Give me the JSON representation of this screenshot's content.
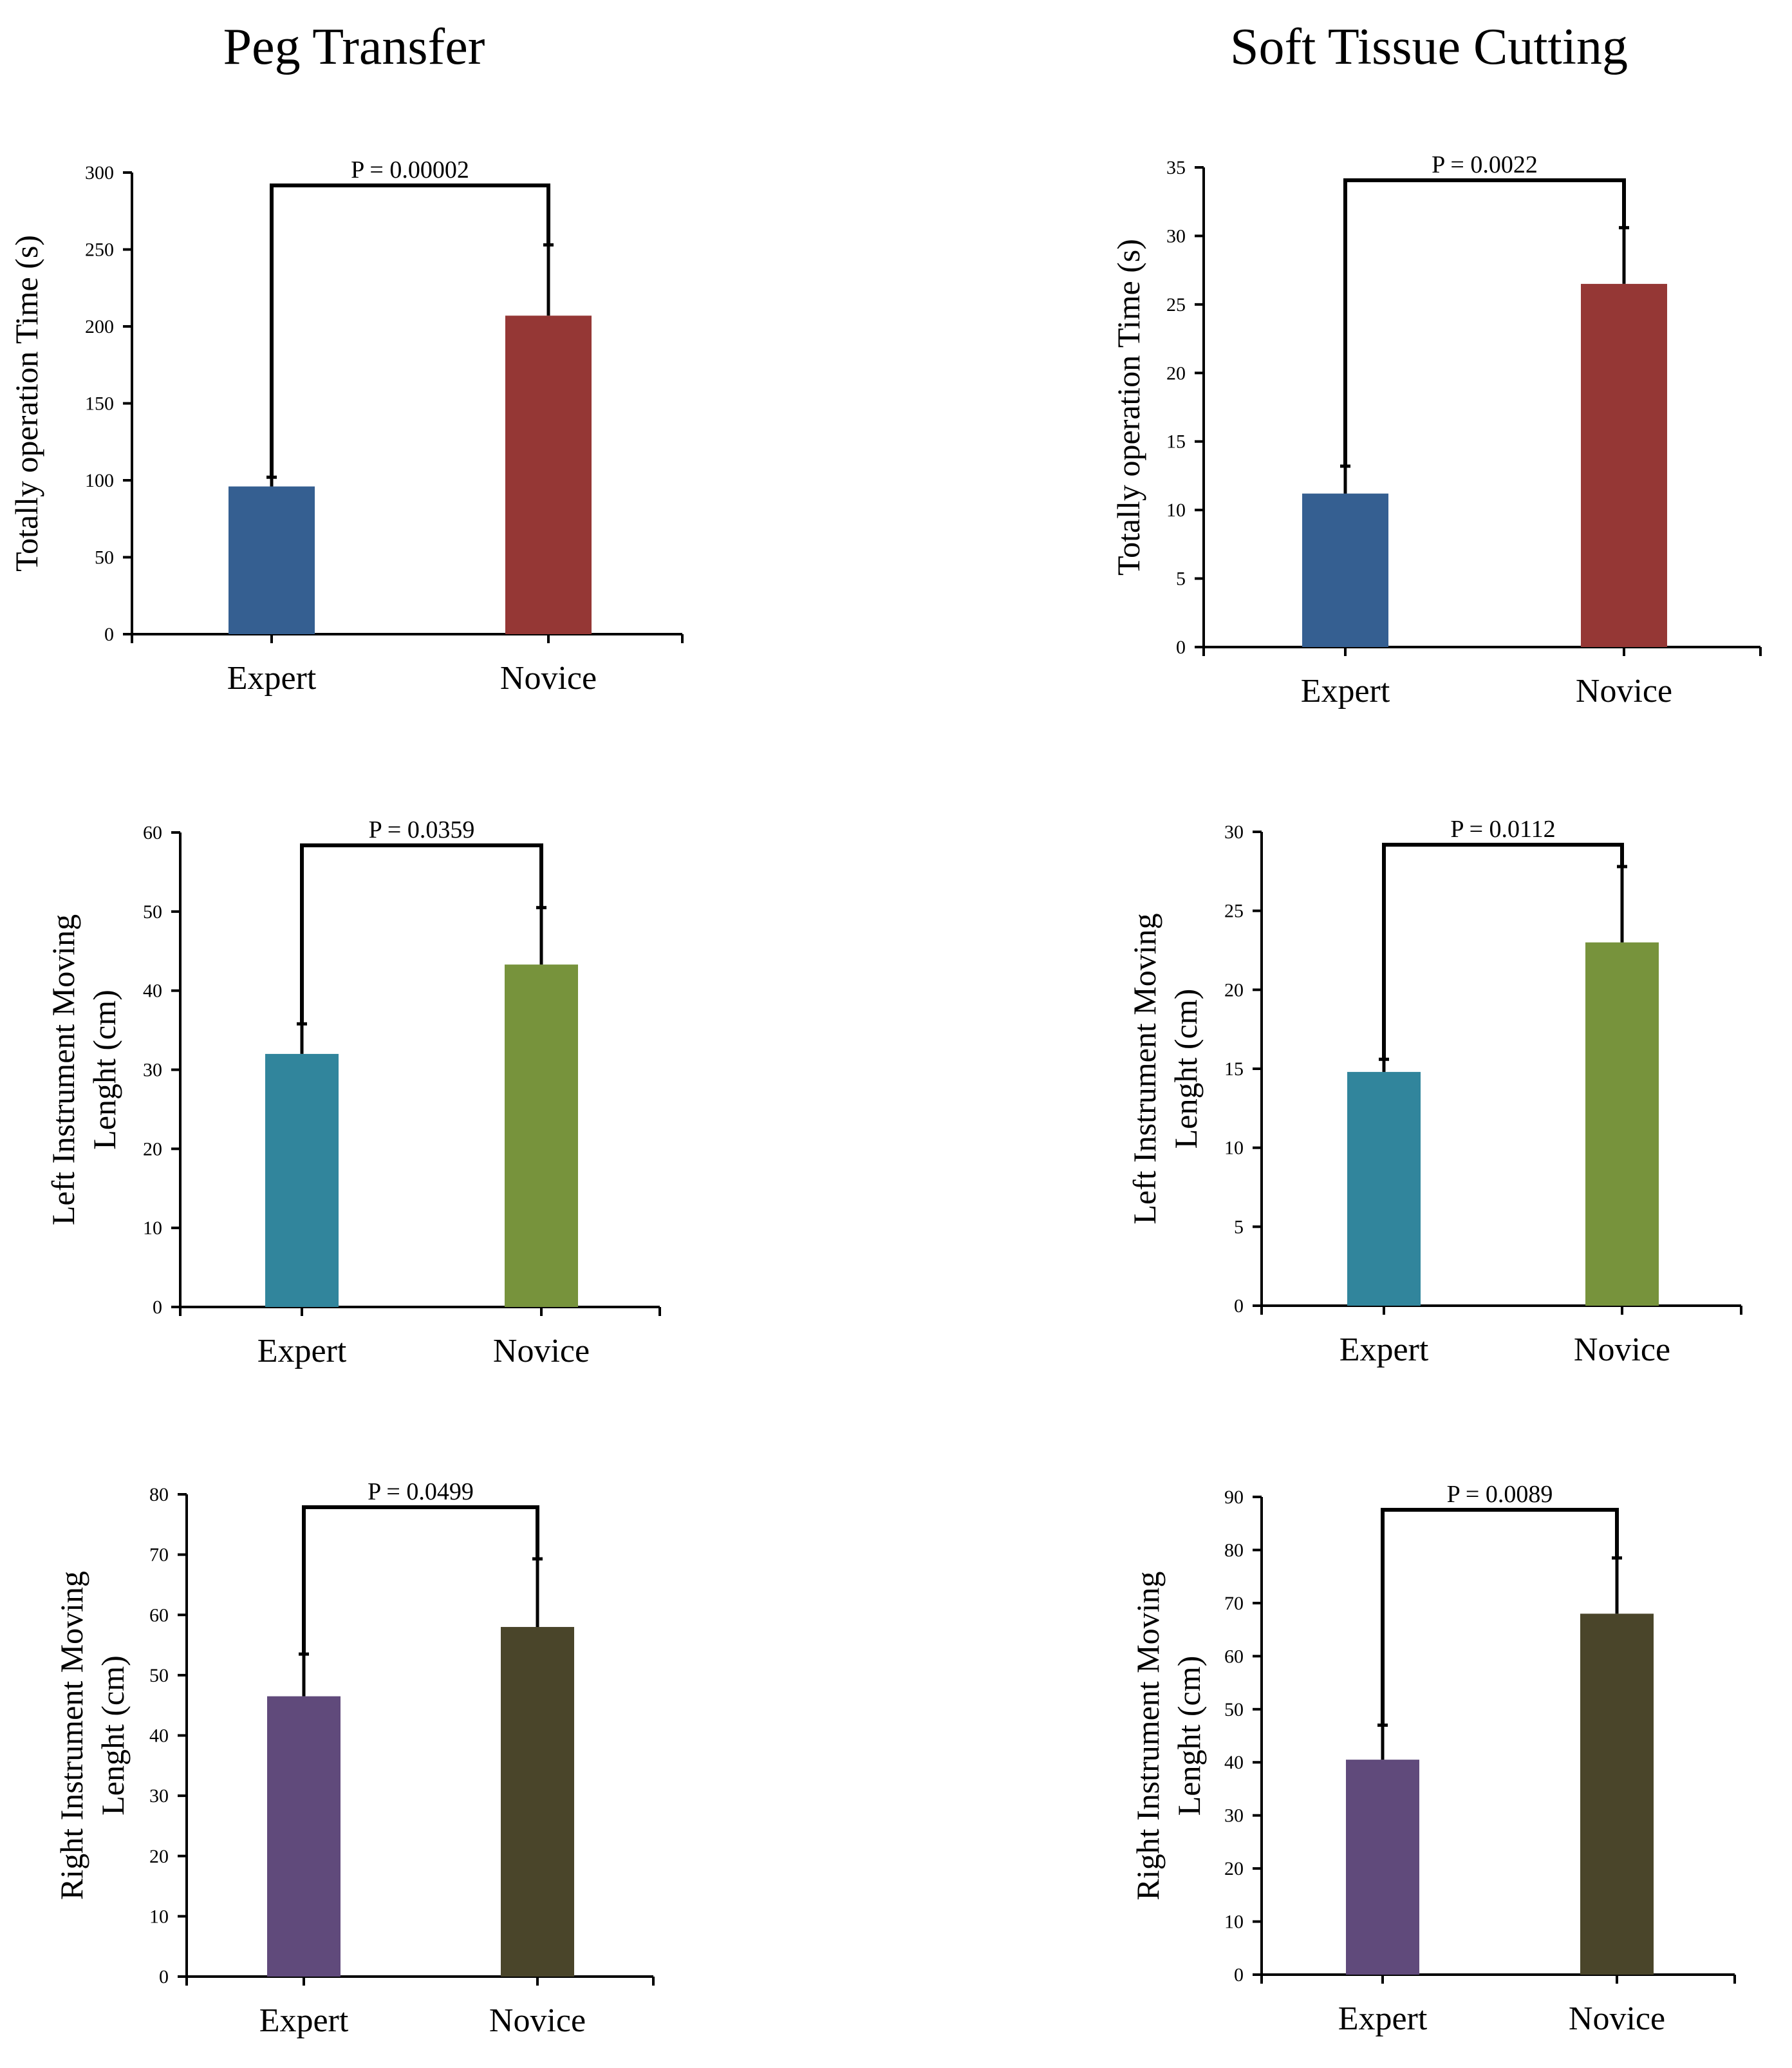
{
  "columns": [
    "Peg Transfer",
    "Soft Tissue Cutting"
  ],
  "colors": {
    "time_expert": "#355f91",
    "time_novice": "#953735",
    "left_expert": "#31859c",
    "left_novice": "#77933c",
    "right_expert": "#604a7b",
    "right_novice": "#4a452a",
    "axis": "#000000"
  },
  "chart_data": [
    {
      "id": "peg-time",
      "type": "bar",
      "column": "Peg Transfer",
      "ylabel_lines": [
        "Totally operation Time (s)"
      ],
      "categories": [
        "Expert",
        "Novice"
      ],
      "values": [
        96,
        207
      ],
      "errors": [
        6,
        46
      ],
      "ylim": [
        0,
        300
      ],
      "yticks": [
        0,
        50,
        100,
        150,
        200,
        250,
        300
      ],
      "p_label": "P = 0.00002",
      "colors": [
        "#355f91",
        "#953735"
      ]
    },
    {
      "id": "stc-time",
      "type": "bar",
      "column": "Soft Tissue Cutting",
      "ylabel_lines": [
        "Totally operation Time (s)"
      ],
      "categories": [
        "Expert",
        "Novice"
      ],
      "values": [
        11.2,
        26.5
      ],
      "errors": [
        2.0,
        4.1
      ],
      "ylim": [
        0,
        35
      ],
      "yticks": [
        0,
        5,
        10,
        15,
        20,
        25,
        30,
        35
      ],
      "p_label": "P = 0.0022",
      "colors": [
        "#355f91",
        "#953735"
      ]
    },
    {
      "id": "peg-left",
      "type": "bar",
      "column": "Peg Transfer",
      "ylabel_lines": [
        "Left Instrument Moving",
        "Lenght (cm)"
      ],
      "categories": [
        "Expert",
        "Novice"
      ],
      "values": [
        32,
        43.3
      ],
      "errors": [
        3.8,
        7.2
      ],
      "ylim": [
        0,
        60
      ],
      "yticks": [
        0,
        10,
        20,
        30,
        40,
        50,
        60
      ],
      "p_label": "P = 0.0359",
      "colors": [
        "#31859c",
        "#77933c"
      ]
    },
    {
      "id": "stc-left",
      "type": "bar",
      "column": "Soft Tissue Cutting",
      "ylabel_lines": [
        "Left Instrument Moving",
        "Lenght (cm)"
      ],
      "categories": [
        "Expert",
        "Novice"
      ],
      "values": [
        14.8,
        23.0
      ],
      "errors": [
        0.8,
        4.8
      ],
      "ylim": [
        0,
        30
      ],
      "yticks": [
        0,
        5,
        10,
        15,
        20,
        25,
        30
      ],
      "p_label": "P = 0.0112",
      "colors": [
        "#31859c",
        "#77933c"
      ]
    },
    {
      "id": "peg-right",
      "type": "bar",
      "column": "Peg Transfer",
      "ylabel_lines": [
        "Right Instrument Moving",
        "Lenght (cm)"
      ],
      "categories": [
        "Expert",
        "Novice"
      ],
      "values": [
        46.5,
        58.0
      ],
      "errors": [
        7.0,
        11.3
      ],
      "ylim": [
        0,
        80
      ],
      "yticks": [
        0,
        10,
        20,
        30,
        40,
        50,
        60,
        70,
        80
      ],
      "p_label": "P = 0.0499",
      "colors": [
        "#604a7b",
        "#4a452a"
      ]
    },
    {
      "id": "stc-right",
      "type": "bar",
      "column": "Soft Tissue Cutting",
      "ylabel_lines": [
        "Right Instrument Moving",
        "Lenght (cm)"
      ],
      "categories": [
        "Expert",
        "Novice"
      ],
      "values": [
        40.5,
        68.0
      ],
      "errors": [
        6.5,
        10.5
      ],
      "ylim": [
        0,
        90
      ],
      "yticks": [
        0,
        10,
        20,
        30,
        40,
        50,
        60,
        70,
        80,
        90
      ],
      "p_label": "P = 0.0089",
      "colors": [
        "#604a7b",
        "#4a452a"
      ]
    }
  ]
}
